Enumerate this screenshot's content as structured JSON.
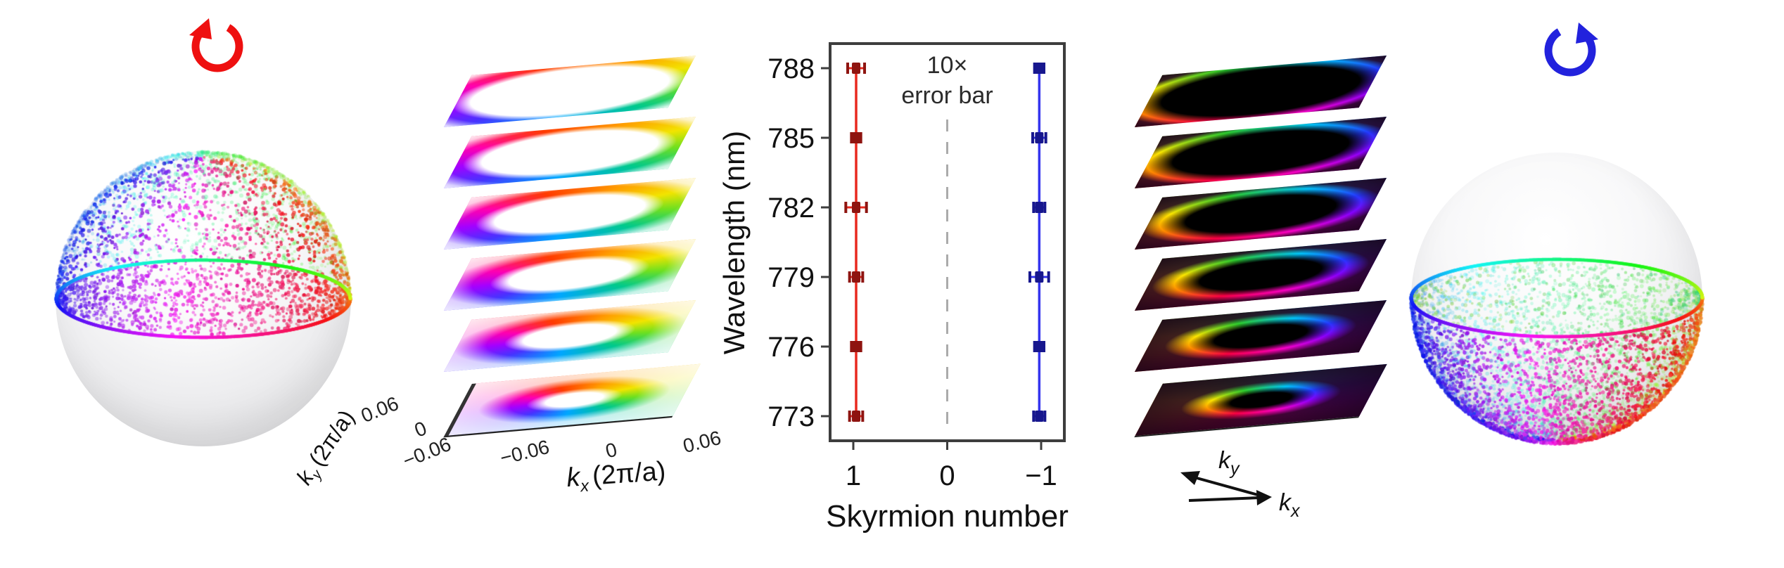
{
  "panels": {
    "left_rotation": {
      "icon": "ccw-rotation-arrow",
      "direction": "counterclockwise",
      "color": "#ee1010"
    },
    "right_rotation": {
      "icon": "cw-rotation-arrow",
      "direction": "clockwise",
      "color": "#2222dd"
    },
    "left_sphere": {
      "dotted_hemisphere": "upper",
      "equator": "rainbow-ring"
    },
    "right_sphere": {
      "dotted_hemisphere": "lower",
      "equator": "rainbow-ring"
    }
  },
  "left_stack": {
    "layer_count": 6,
    "style": "white-center-rainbow-ring",
    "x_axis": {
      "sym": "k",
      "sub": "x",
      "units": "(2π/a)",
      "ticks": [
        "−0.06",
        "0",
        "0.06"
      ]
    },
    "y_axis": {
      "sym": "k",
      "sub": "y",
      "units": "(2π/a)",
      "ticks": [
        "0.06",
        "0",
        "−0.06"
      ]
    }
  },
  "right_stack": {
    "layer_count": 6,
    "style": "black-center-rainbow-ring",
    "x_arrow": {
      "sym": "k",
      "sub": "x"
    },
    "y_arrow": {
      "sym": "k",
      "sub": "y"
    }
  },
  "chart_data": {
    "type": "scatter",
    "xlabel": "Skyrmion number",
    "ylabel": "Wavelength (nm)",
    "annotation": [
      "10×",
      "error bar"
    ],
    "x_axis_reversed": true,
    "x_ticks": [
      {
        "label": "1",
        "value": 1
      },
      {
        "label": "0",
        "value": 0
      },
      {
        "label": "−1",
        "value": -1
      }
    ],
    "y_ticks": [
      788,
      785,
      782,
      779,
      776,
      773
    ],
    "y_range": [
      772,
      789
    ],
    "grid": false,
    "zero_line": {
      "value": 0,
      "style": "dashed",
      "color": "#ababab"
    },
    "series": [
      {
        "name": "red",
        "line_color": "#e8291f",
        "marker_color": "#8e1410",
        "points": [
          {
            "y": 788,
            "x": 0.97,
            "xerr": 0.09
          },
          {
            "y": 785,
            "x": 0.97,
            "xerr": 0.05
          },
          {
            "y": 782,
            "x": 0.97,
            "xerr": 0.11
          },
          {
            "y": 779,
            "x": 0.97,
            "xerr": 0.07
          },
          {
            "y": 776,
            "x": 0.97,
            "xerr": 0.05
          },
          {
            "y": 773,
            "x": 0.97,
            "xerr": 0.07
          }
        ]
      },
      {
        "name": "blue",
        "line_color": "#3434ee",
        "marker_color": "#17178e",
        "points": [
          {
            "y": 788,
            "x": -0.98,
            "xerr": 0.05
          },
          {
            "y": 785,
            "x": -0.98,
            "xerr": 0.07
          },
          {
            "y": 782,
            "x": -0.98,
            "xerr": 0.06
          },
          {
            "y": 779,
            "x": -0.98,
            "xerr": 0.1
          },
          {
            "y": 776,
            "x": -0.98,
            "xerr": 0.05
          },
          {
            "y": 773,
            "x": -0.98,
            "xerr": 0.06
          }
        ]
      }
    ]
  }
}
